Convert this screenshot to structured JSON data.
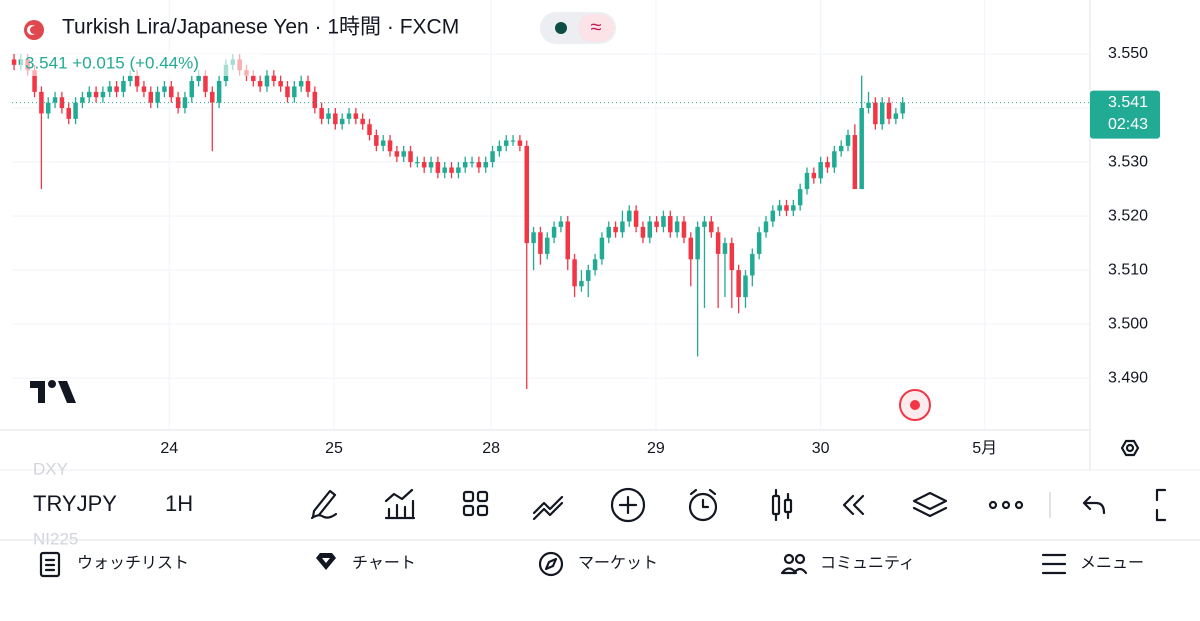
{
  "header": {
    "title": "Turkish Lira/Japanese Yen · 1時間 · FXCM",
    "quote": "3.541 +0.015 (+0.44%)"
  },
  "chart_data": {
    "type": "candlestick",
    "colors": {
      "up": "#22ab94",
      "down": "#f23645"
    },
    "grid": true,
    "ylim": [
      3.4804,
      3.56
    ],
    "yticks": [
      {
        "value": 3.55,
        "label": "3.550"
      },
      {
        "value": 3.54,
        "label": "3.540"
      },
      {
        "value": 3.53,
        "label": "3.530"
      },
      {
        "value": 3.52,
        "label": "3.520"
      },
      {
        "value": 3.51,
        "label": "3.510"
      },
      {
        "value": 3.5,
        "label": "3.500"
      },
      {
        "value": 3.49,
        "label": "3.490"
      }
    ],
    "xlim": [
      -0.3,
      157.4
    ],
    "xticks": [
      {
        "value": 22.7,
        "label": "24"
      },
      {
        "value": 46.8,
        "label": "25"
      },
      {
        "value": 69.8,
        "label": "28"
      },
      {
        "value": 93.9,
        "label": "29"
      },
      {
        "value": 118,
        "label": "30"
      },
      {
        "value": 142,
        "label": "5月"
      }
    ],
    "last_price": 3.541,
    "countdown": "02:43",
    "candles": [
      [
        3.549,
        3.55,
        3.547,
        3.548
      ],
      [
        3.548,
        3.55,
        3.547,
        3.549
      ],
      [
        3.549,
        3.55,
        3.546,
        3.547
      ],
      [
        3.547,
        3.548,
        3.542,
        3.543
      ],
      [
        3.543,
        3.544,
        3.525,
        3.539
      ],
      [
        3.539,
        3.542,
        3.538,
        3.541
      ],
      [
        3.541,
        3.543,
        3.54,
        3.542
      ],
      [
        3.542,
        3.543,
        3.539,
        3.54
      ],
      [
        3.54,
        3.541,
        3.537,
        3.538
      ],
      [
        3.538,
        3.542,
        3.537,
        3.541
      ],
      [
        3.541,
        3.543,
        3.54,
        3.542
      ],
      [
        3.542,
        3.544,
        3.541,
        3.543
      ],
      [
        3.543,
        3.544,
        3.541,
        3.542
      ],
      [
        3.542,
        3.544,
        3.541,
        3.543
      ],
      [
        3.543,
        3.545,
        3.542,
        3.544
      ],
      [
        3.544,
        3.545,
        3.542,
        3.543
      ],
      [
        3.543,
        3.546,
        3.542,
        3.545
      ],
      [
        3.545,
        3.547,
        3.544,
        3.546
      ],
      [
        3.546,
        3.547,
        3.543,
        3.544
      ],
      [
        3.544,
        3.545,
        3.542,
        3.543
      ],
      [
        3.543,
        3.544,
        3.54,
        3.541
      ],
      [
        3.541,
        3.544,
        3.54,
        3.543
      ],
      [
        3.543,
        3.545,
        3.542,
        3.544
      ],
      [
        3.544,
        3.545,
        3.541,
        3.542
      ],
      [
        3.542,
        3.543,
        3.539,
        3.54
      ],
      [
        3.54,
        3.543,
        3.539,
        3.542
      ],
      [
        3.542,
        3.546,
        3.541,
        3.545
      ],
      [
        3.545,
        3.547,
        3.544,
        3.546
      ],
      [
        3.546,
        3.547,
        3.542,
        3.543
      ],
      [
        3.543,
        3.544,
        3.532,
        3.541
      ],
      [
        3.541,
        3.546,
        3.54,
        3.545
      ],
      [
        3.545,
        3.549,
        3.544,
        3.548
      ],
      [
        3.548,
        3.55,
        3.547,
        3.549
      ],
      [
        3.549,
        3.55,
        3.546,
        3.547
      ],
      [
        3.547,
        3.548,
        3.545,
        3.546
      ],
      [
        3.546,
        3.547,
        3.544,
        3.545
      ],
      [
        3.545,
        3.546,
        3.543,
        3.544
      ],
      [
        3.544,
        3.547,
        3.543,
        3.546
      ],
      [
        3.546,
        3.547,
        3.544,
        3.545
      ],
      [
        3.545,
        3.546,
        3.543,
        3.544
      ],
      [
        3.544,
        3.545,
        3.541,
        3.542
      ],
      [
        3.542,
        3.545,
        3.541,
        3.544
      ],
      [
        3.544,
        3.546,
        3.543,
        3.545
      ],
      [
        3.545,
        3.546,
        3.542,
        3.543
      ],
      [
        3.543,
        3.544,
        3.539,
        3.54
      ],
      [
        3.54,
        3.541,
        3.537,
        3.538
      ],
      [
        3.538,
        3.54,
        3.537,
        3.539
      ],
      [
        3.539,
        3.54,
        3.536,
        3.537
      ],
      [
        3.537,
        3.539,
        3.536,
        3.538
      ],
      [
        3.538,
        3.54,
        3.537,
        3.539
      ],
      [
        3.539,
        3.54,
        3.537,
        3.538
      ],
      [
        3.538,
        3.539,
        3.536,
        3.537
      ],
      [
        3.537,
        3.538,
        3.534,
        3.535
      ],
      [
        3.535,
        3.536,
        3.532,
        3.533
      ],
      [
        3.533,
        3.535,
        3.532,
        3.534
      ],
      [
        3.534,
        3.535,
        3.531,
        3.532
      ],
      [
        3.532,
        3.533,
        3.53,
        3.531
      ],
      [
        3.531,
        3.533,
        3.53,
        3.532
      ],
      [
        3.532,
        3.533,
        3.529,
        3.53
      ],
      [
        3.53,
        3.531,
        3.529,
        3.53
      ],
      [
        3.53,
        3.531,
        3.528,
        3.529
      ],
      [
        3.529,
        3.531,
        3.528,
        3.53
      ],
      [
        3.53,
        3.531,
        3.527,
        3.528
      ],
      [
        3.528,
        3.53,
        3.527,
        3.529
      ],
      [
        3.529,
        3.53,
        3.527,
        3.528
      ],
      [
        3.528,
        3.53,
        3.527,
        3.529
      ],
      [
        3.529,
        3.531,
        3.528,
        3.53
      ],
      [
        3.53,
        3.531,
        3.529,
        3.53
      ],
      [
        3.53,
        3.531,
        3.528,
        3.529
      ],
      [
        3.529,
        3.531,
        3.528,
        3.53
      ],
      [
        3.53,
        3.533,
        3.529,
        3.532
      ],
      [
        3.532,
        3.534,
        3.531,
        3.533
      ],
      [
        3.533,
        3.535,
        3.532,
        3.534
      ],
      [
        3.534,
        3.535,
        3.533,
        3.534
      ],
      [
        3.534,
        3.535,
        3.532,
        3.533
      ],
      [
        3.533,
        3.534,
        3.488,
        3.515
      ],
      [
        3.515,
        3.518,
        3.51,
        3.517
      ],
      [
        3.517,
        3.518,
        3.511,
        3.513
      ],
      [
        3.513,
        3.517,
        3.512,
        3.516
      ],
      [
        3.516,
        3.519,
        3.515,
        3.518
      ],
      [
        3.518,
        3.52,
        3.517,
        3.519
      ],
      [
        3.519,
        3.52,
        3.51,
        3.512
      ],
      [
        3.512,
        3.513,
        3.505,
        3.507
      ],
      [
        3.507,
        3.51,
        3.506,
        3.508
      ],
      [
        3.508,
        3.511,
        3.505,
        3.51
      ],
      [
        3.51,
        3.513,
        3.509,
        3.512
      ],
      [
        3.512,
        3.517,
        3.511,
        3.516
      ],
      [
        3.516,
        3.519,
        3.515,
        3.518
      ],
      [
        3.518,
        3.519,
        3.516,
        3.517
      ],
      [
        3.517,
        3.521,
        3.516,
        3.519
      ],
      [
        3.519,
        3.522,
        3.518,
        3.521
      ],
      [
        3.521,
        3.522,
        3.517,
        3.518
      ],
      [
        3.518,
        3.519,
        3.515,
        3.516
      ],
      [
        3.516,
        3.52,
        3.515,
        3.519
      ],
      [
        3.519,
        3.52,
        3.517,
        3.518
      ],
      [
        3.518,
        3.521,
        3.517,
        3.52
      ],
      [
        3.52,
        3.521,
        3.516,
        3.517
      ],
      [
        3.517,
        3.52,
        3.516,
        3.519
      ],
      [
        3.519,
        3.52,
        3.515,
        3.516
      ],
      [
        3.516,
        3.517,
        3.507,
        3.512
      ],
      [
        3.512,
        3.519,
        3.494,
        3.518
      ],
      [
        3.518,
        3.52,
        3.503,
        3.519
      ],
      [
        3.519,
        3.52,
        3.516,
        3.517
      ],
      [
        3.517,
        3.518,
        3.503,
        3.513
      ],
      [
        3.513,
        3.516,
        3.505,
        3.515
      ],
      [
        3.515,
        3.516,
        3.503,
        3.51
      ],
      [
        3.51,
        3.511,
        3.502,
        3.505
      ],
      [
        3.505,
        3.51,
        3.503,
        3.509
      ],
      [
        3.509,
        3.514,
        3.507,
        3.513
      ],
      [
        3.513,
        3.518,
        3.512,
        3.517
      ],
      [
        3.517,
        3.52,
        3.516,
        3.519
      ],
      [
        3.519,
        3.522,
        3.518,
        3.521
      ],
      [
        3.521,
        3.523,
        3.52,
        3.522
      ],
      [
        3.522,
        3.523,
        3.52,
        3.521
      ],
      [
        3.521,
        3.523,
        3.52,
        3.522
      ],
      [
        3.522,
        3.526,
        3.521,
        3.525
      ],
      [
        3.525,
        3.529,
        3.524,
        3.528
      ],
      [
        3.528,
        3.529,
        3.526,
        3.527
      ],
      [
        3.527,
        3.531,
        3.526,
        3.53
      ],
      [
        3.53,
        3.531,
        3.528,
        3.529
      ],
      [
        3.529,
        3.533,
        3.528,
        3.532
      ],
      [
        3.532,
        3.534,
        3.531,
        3.533
      ],
      [
        3.533,
        3.536,
        3.532,
        3.535
      ],
      [
        3.535,
        3.537,
        3.525,
        3.525
      ],
      [
        3.525,
        3.546,
        3.525,
        3.54
      ],
      [
        3.54,
        3.543,
        3.539,
        3.541
      ],
      [
        3.541,
        3.542,
        3.536,
        3.537
      ],
      [
        3.537,
        3.542,
        3.536,
        3.541
      ],
      [
        3.541,
        3.542,
        3.537,
        3.538
      ],
      [
        3.538,
        3.54,
        3.537,
        3.539
      ],
      [
        3.539,
        3.542,
        3.538,
        3.541
      ]
    ]
  },
  "toolbar": {
    "prev_symbol": "DXY",
    "symbol": "TRYJPY",
    "interval": "1H",
    "next_symbol": "NI225"
  },
  "nav": [
    "ウォッチリスト",
    "チャート",
    "マーケット",
    "コミュニティ",
    "メニュー"
  ]
}
